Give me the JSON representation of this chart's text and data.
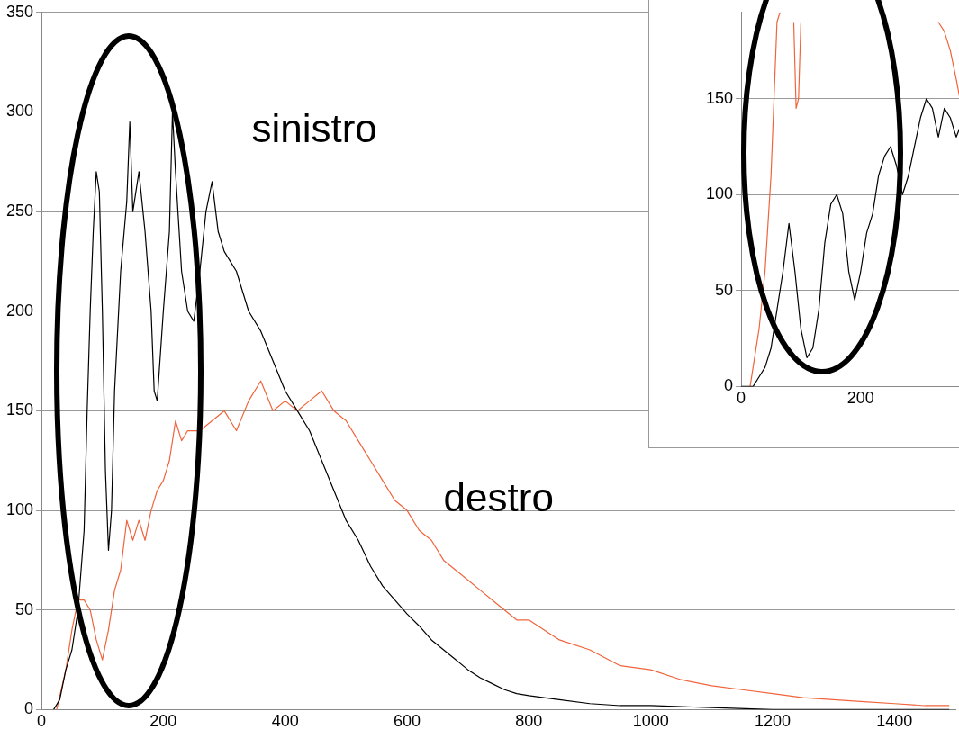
{
  "chart_data": [
    {
      "type": "line",
      "xlim": [
        0,
        1500
      ],
      "xticks": [
        0,
        200,
        400,
        600,
        800,
        1000,
        1200,
        1400
      ],
      "ylim": [
        0,
        350
      ],
      "yticks": [
        0,
        50,
        100,
        150,
        200,
        250,
        300,
        350
      ],
      "grid": "y",
      "series": [
        {
          "name": "sinistro",
          "color": "#000000",
          "x": [
            20,
            30,
            40,
            50,
            60,
            70,
            75,
            80,
            85,
            90,
            95,
            100,
            105,
            110,
            115,
            120,
            130,
            140,
            145,
            150,
            160,
            170,
            180,
            185,
            190,
            200,
            210,
            215,
            220,
            230,
            240,
            250,
            260,
            270,
            280,
            290,
            300,
            320,
            340,
            360,
            380,
            400,
            420,
            440,
            460,
            480,
            500,
            520,
            540,
            560,
            580,
            600,
            620,
            640,
            660,
            680,
            700,
            720,
            740,
            760,
            780,
            800,
            850,
            900,
            950,
            1000,
            1100,
            1200,
            1300,
            1400,
            1490
          ],
          "values": [
            0,
            5,
            20,
            30,
            50,
            90,
            150,
            200,
            240,
            270,
            260,
            200,
            120,
            80,
            100,
            160,
            220,
            255,
            295,
            250,
            270,
            240,
            200,
            160,
            155,
            200,
            240,
            300,
            270,
            220,
            200,
            195,
            220,
            250,
            265,
            240,
            230,
            220,
            200,
            190,
            175,
            160,
            150,
            140,
            125,
            110,
            95,
            85,
            72,
            62,
            55,
            48,
            42,
            35,
            30,
            25,
            20,
            16,
            13,
            10,
            8,
            7,
            5,
            3,
            2,
            2,
            1,
            0,
            0,
            0,
            0
          ]
        },
        {
          "name": "destro",
          "color": "#f0643c",
          "x": [
            25,
            40,
            50,
            60,
            70,
            80,
            90,
            100,
            110,
            120,
            130,
            140,
            150,
            160,
            170,
            180,
            190,
            200,
            210,
            220,
            230,
            240,
            260,
            280,
            300,
            320,
            340,
            360,
            380,
            400,
            420,
            440,
            460,
            480,
            500,
            520,
            540,
            560,
            580,
            600,
            620,
            640,
            660,
            680,
            700,
            720,
            740,
            760,
            780,
            800,
            850,
            900,
            950,
            1000,
            1050,
            1100,
            1150,
            1200,
            1250,
            1300,
            1350,
            1400,
            1450,
            1490
          ],
          "values": [
            0,
            20,
            40,
            55,
            55,
            50,
            35,
            25,
            40,
            60,
            70,
            95,
            85,
            95,
            85,
            100,
            110,
            115,
            125,
            145,
            135,
            140,
            140,
            145,
            150,
            140,
            155,
            165,
            150,
            155,
            150,
            155,
            160,
            150,
            145,
            135,
            125,
            115,
            105,
            100,
            90,
            85,
            75,
            70,
            65,
            60,
            55,
            50,
            45,
            45,
            35,
            30,
            22,
            20,
            15,
            12,
            10,
            8,
            6,
            5,
            4,
            3,
            2,
            2
          ]
        }
      ]
    },
    {
      "type": "line",
      "xlim": [
        0,
        366
      ],
      "xticks": [
        0,
        200
      ],
      "ylim": [
        0,
        195
      ],
      "yticks": [
        0,
        50,
        100,
        150
      ],
      "grid": "y",
      "series": [
        {
          "color": "#000000",
          "x": [
            0,
            20,
            30,
            40,
            50,
            60,
            70,
            80,
            90,
            100,
            110,
            120,
            130,
            140,
            150,
            160,
            170,
            180,
            190,
            200,
            210,
            220,
            230,
            240,
            250,
            260,
            270,
            280,
            290,
            300,
            310,
            320,
            330,
            340,
            350,
            360,
            366
          ],
          "values": [
            0,
            0,
            5,
            10,
            20,
            40,
            60,
            85,
            60,
            30,
            15,
            20,
            40,
            75,
            95,
            100,
            90,
            60,
            45,
            60,
            80,
            90,
            110,
            120,
            125,
            115,
            100,
            110,
            125,
            140,
            150,
            145,
            130,
            145,
            140,
            130,
            135
          ]
        },
        {
          "color": "#f0643c",
          "x": [
            15,
            20,
            30,
            40,
            50,
            55,
            60,
            65,
            75,
            88,
            92,
            96,
            100,
            110,
            330,
            340,
            350,
            360,
            366
          ],
          "values": [
            0,
            10,
            30,
            60,
            110,
            150,
            190,
            195,
            null,
            190,
            145,
            150,
            190,
            null,
            190,
            185,
            175,
            160,
            150
          ]
        }
      ]
    }
  ]
}
